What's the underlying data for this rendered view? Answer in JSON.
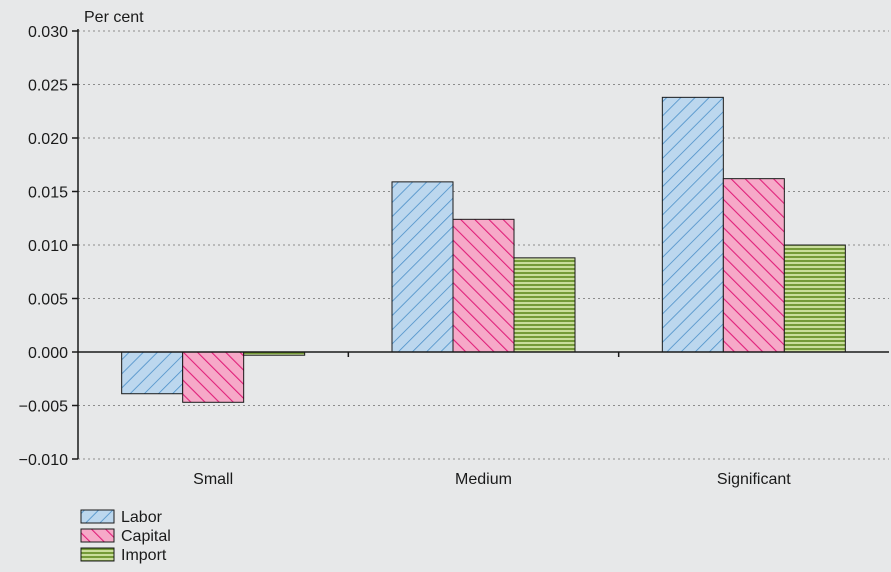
{
  "chart_data": {
    "type": "bar",
    "unit_label": "Per cent",
    "categories": [
      "Small",
      "Medium",
      "Significant"
    ],
    "series": [
      {
        "name": "Labor",
        "values": [
          -0.0039,
          0.0159,
          0.0238
        ],
        "color": "#bcd7ee",
        "stroke": "#4a8fc8",
        "pattern": "back-diagonal"
      },
      {
        "name": "Capital",
        "values": [
          -0.0047,
          0.0124,
          0.0162
        ],
        "color": "#f6a9c8",
        "stroke": "#e0207a",
        "pattern": "forward-diagonal"
      },
      {
        "name": "Import",
        "values": [
          -0.0003,
          0.0088,
          0.01
        ],
        "color": "#c9dd9b",
        "stroke": "#5f8a1e",
        "pattern": "horizontal"
      }
    ],
    "ylim": [
      -0.01,
      0.03
    ],
    "yticks": [
      "0.030",
      "0.025",
      "0.020",
      "0.015",
      "0.010",
      "0.005",
      "0.000",
      "−0.005",
      "−0.010"
    ],
    "ytick_values": [
      0.03,
      0.025,
      0.02,
      0.015,
      0.01,
      0.005,
      0.0,
      -0.005,
      -0.01
    ],
    "grid": true,
    "legend_position": "bottom-left"
  }
}
